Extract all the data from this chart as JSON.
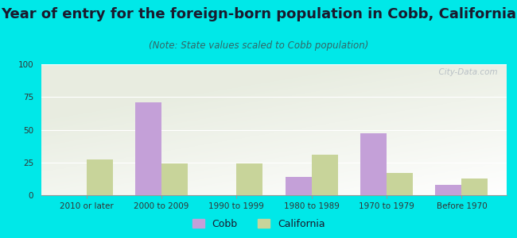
{
  "title": "Year of entry for the foreign-born population in Cobb, California",
  "subtitle": "(Note: State values scaled to Cobb population)",
  "categories": [
    "2010 or later",
    "2000 to 2009",
    "1990 to 1999",
    "1980 to 1989",
    "1970 to 1979",
    "Before 1970"
  ],
  "cobb_values": [
    0,
    71,
    0,
    14,
    47,
    8
  ],
  "california_values": [
    27,
    24,
    24,
    31,
    17,
    13
  ],
  "cobb_color": "#c4a0d8",
  "california_color": "#c8d49a",
  "ylim": [
    0,
    100
  ],
  "yticks": [
    0,
    25,
    50,
    75,
    100
  ],
  "background_color": "#00e8e8",
  "bar_width": 0.35,
  "title_fontsize": 13,
  "subtitle_fontsize": 8.5,
  "tick_fontsize": 7.5,
  "legend_fontsize": 9,
  "watermark_text": "  City-Data.com",
  "watermark_color": "#b0b8c0"
}
